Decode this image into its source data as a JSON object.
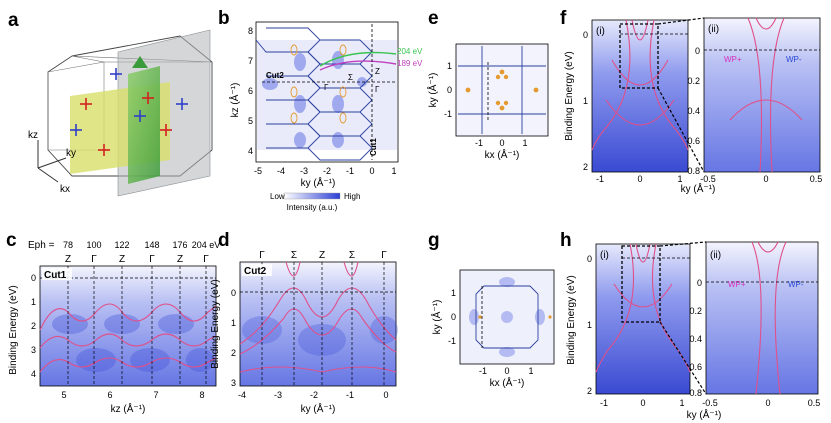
{
  "panel_labels": {
    "a": "a",
    "b": "b",
    "c": "c",
    "d": "d",
    "e": "e",
    "f": "f",
    "g": "g",
    "h": "h"
  },
  "colors": {
    "map_low": "#ffffff",
    "map_high": "#2d3fd6",
    "band": "#e0508a",
    "bz": "#2a3f9e",
    "arpes_bg": "#6f7fe8",
    "dashed": "#000000",
    "wp_plus": "#d62fbf",
    "wp_minus": "#2847d8",
    "green_line": "#39c450",
    "magenta_line": "#c040c0",
    "orange_pocket": "#e59a30"
  },
  "panel_a": {
    "axis_z": "kz",
    "axis_y": "ky",
    "axis_x": "kx"
  },
  "panel_b": {
    "cut_labels": [
      "Cut2",
      "Cut1"
    ],
    "energy_labels": [
      "204 eV",
      "189 eV"
    ],
    "point_labels": [
      "Γ",
      "Σ",
      "Z",
      "Γ"
    ],
    "colorbar": {
      "low": "Low",
      "high": "High",
      "caption": "Intensity (a.u.)"
    },
    "xlabel": "ky (Å⁻¹)",
    "ylabel": "kz (Å⁻¹)",
    "xticks": [
      "-5",
      "-4",
      "-3",
      "-2",
      "-1",
      "0",
      "1"
    ],
    "yticks": [
      "4",
      "5",
      "6",
      "7",
      "8"
    ]
  },
  "panel_c": {
    "eph_label": "Eph =",
    "eph_values": [
      "78",
      "100",
      "122",
      "148",
      "176",
      "204 eV"
    ],
    "points": [
      "Z",
      "Γ",
      "Z",
      "Γ",
      "Z",
      "Γ"
    ],
    "cut_label": "Cut1",
    "xlabel": "kz (Å⁻¹)",
    "ylabel": "Binding Energy (eV)",
    "xticks": [
      "5",
      "6",
      "7",
      "8"
    ],
    "yticks": [
      "0",
      "1",
      "2",
      "3",
      "4"
    ]
  },
  "panel_d": {
    "points": [
      "Γ",
      "Σ",
      "Z",
      "Σ",
      "Γ"
    ],
    "cut_label": "Cut2",
    "xlabel": "ky (Å⁻¹)",
    "ylabel": "Binding Energy (eV)",
    "xticks": [
      "-4",
      "-3",
      "-2",
      "-1",
      "0"
    ],
    "yticks": [
      "0",
      "1",
      "2",
      "3"
    ]
  },
  "panel_e": {
    "xlabel": "kx (Å⁻¹)",
    "ylabel": "ky (Å⁻¹)",
    "xticks": [
      "-1",
      "0",
      "1"
    ],
    "yticks": [
      "1",
      "0",
      "-1"
    ]
  },
  "panel_g": {
    "xlabel": "kx (Å⁻¹)",
    "ylabel": "ky (Å⁻¹)",
    "xticks": [
      "-1",
      "0",
      "1"
    ],
    "yticks": [
      "1",
      "0",
      "-1"
    ]
  },
  "panel_f": {
    "sub_i": "(i)",
    "sub_ii": "(ii)",
    "ylabel": "Binding Energy (eV)",
    "xlabel": "ky (Å⁻¹)",
    "i_xticks": [
      "-1",
      "0",
      "1"
    ],
    "i_yticks": [
      "0",
      "1",
      "2"
    ],
    "ii_xticks": [
      "-0.5",
      "0",
      "0.5"
    ],
    "ii_yticks": [
      "0",
      "0.2",
      "0.4",
      "0.6",
      "0.8"
    ],
    "wp_plus": "WP+",
    "wp_minus": "WP-"
  },
  "panel_h": {
    "sub_i": "(i)",
    "sub_ii": "(ii)",
    "ylabel": "Binding Energy (eV)",
    "xlabel": "ky (Å⁻¹)",
    "i_xticks": [
      "-1",
      "0",
      "1"
    ],
    "i_yticks": [
      "0",
      "1",
      "2"
    ],
    "ii_xticks": [
      "-0.5",
      "0",
      "0.5"
    ],
    "ii_yticks": [
      "0",
      "0.2",
      "0.4",
      "0.6",
      "0.8"
    ],
    "wp_plus": "WP+",
    "wp_minus": "WP-"
  }
}
